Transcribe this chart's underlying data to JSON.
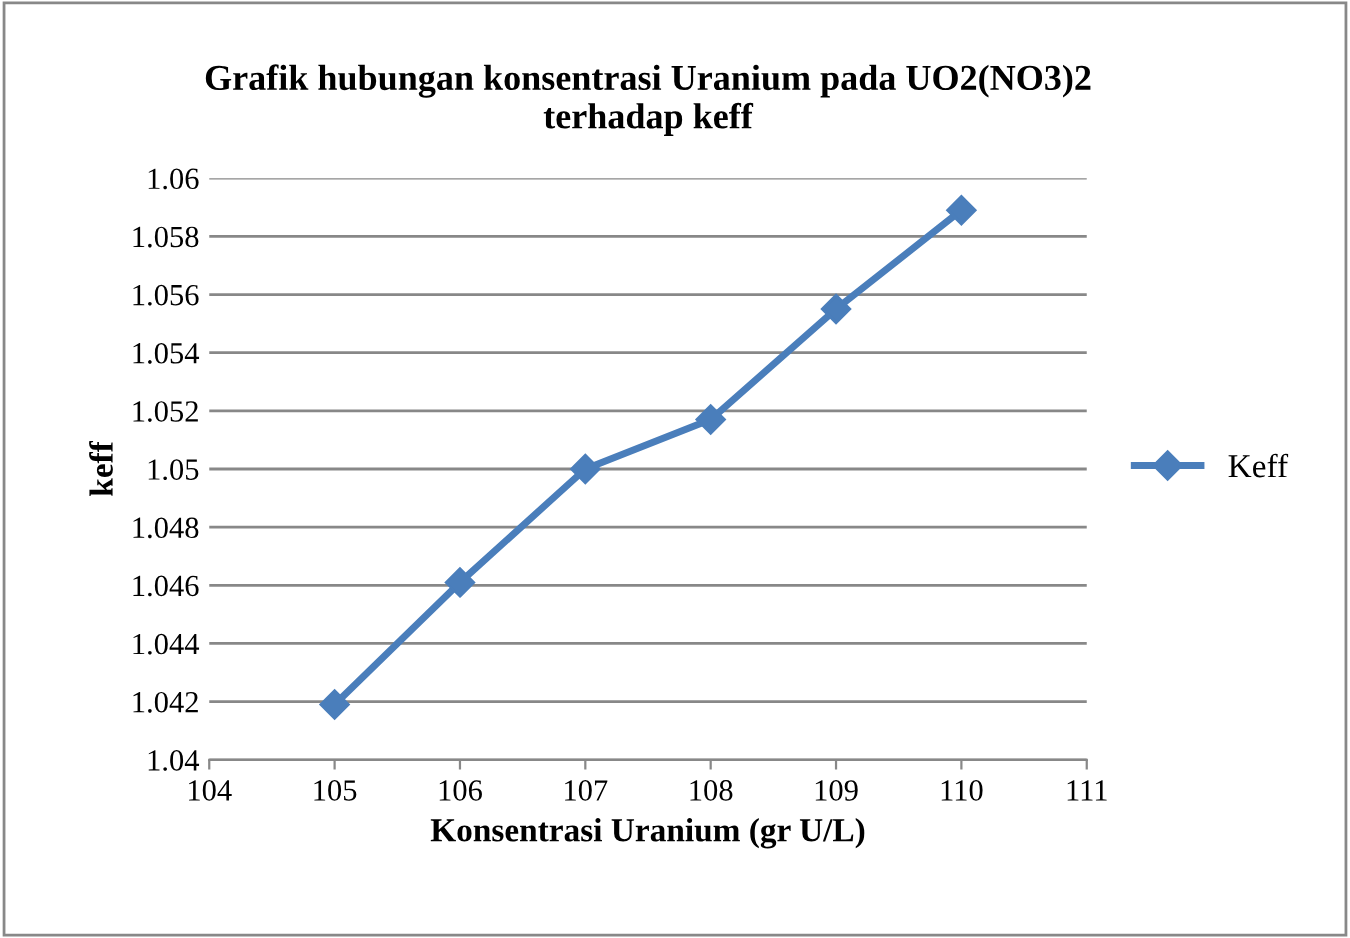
{
  "chart_data": {
    "type": "line",
    "title": "Grafik hubungan konsentrasi Uranium pada UO2(NO3)2\nterhadap keff",
    "xlabel": "Konsentrasi Uranium (gr U/L)",
    "ylabel": "keff",
    "x": [
      105,
      106,
      107,
      108,
      109,
      110
    ],
    "series": [
      {
        "name": "Keff",
        "color": "#4a7ebb",
        "values": [
          1.0419,
          1.0461,
          1.05,
          1.0517,
          1.0555,
          1.0589
        ]
      }
    ],
    "xlim": [
      104,
      111
    ],
    "xticks": [
      104,
      105,
      106,
      107,
      108,
      109,
      110,
      111
    ],
    "ylim": [
      1.04,
      1.06
    ],
    "yticks": [
      {
        "value": 1.04,
        "label": "1.04"
      },
      1.042,
      1.044,
      1.046,
      1.048,
      {
        "value": 1.05,
        "label": "1.05"
      },
      1.052,
      1.054,
      1.056,
      1.058,
      {
        "value": 1.06,
        "label": "1.06"
      }
    ],
    "grid": "y",
    "legend": "right",
    "marker": "diamond",
    "line_style": "solid"
  }
}
